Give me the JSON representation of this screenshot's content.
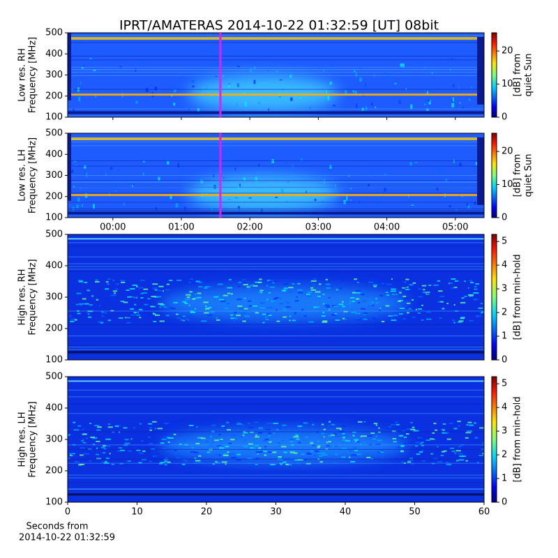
{
  "chart_data": [
    {
      "type": "heatmap",
      "title": "IPRT/AMATERAS 2014-10-22 01:32:59 [UT]   08bit",
      "ylabel": [
        "Low res. RH",
        "Frequency [MHz]"
      ],
      "ylim": [
        100,
        500
      ],
      "yticks": [
        100,
        200,
        300,
        400,
        500
      ],
      "xlim": [
        -0.66,
        5.42
      ],
      "cursor": {
        "x": 1.57,
        "color": "#e020f0"
      },
      "colorbar": {
        "label": [
          "[dB] from",
          "quiet Sun"
        ],
        "lim": [
          0,
          25.5
        ],
        "ticks": [
          0,
          10,
          20
        ]
      }
    },
    {
      "type": "heatmap",
      "ylabel": [
        "Low res. LH",
        "Frequency [MHz]"
      ],
      "ylim": [
        100,
        500
      ],
      "yticks": [
        100,
        200,
        300,
        400,
        500
      ],
      "xlim": [
        -0.66,
        5.42
      ],
      "xticks": [
        {
          "value": 0,
          "label": "00:00"
        },
        {
          "value": 1,
          "label": "01:00"
        },
        {
          "value": 2,
          "label": "02:00"
        },
        {
          "value": 3,
          "label": "03:00"
        },
        {
          "value": 4,
          "label": "04:00"
        },
        {
          "value": 5,
          "label": "05:00"
        }
      ],
      "cursor": {
        "x": 1.57,
        "color": "#e020f0"
      },
      "colorbar": {
        "label": [
          "[dB] from",
          "quiet Sun"
        ],
        "lim": [
          0,
          25.5
        ],
        "ticks": [
          0,
          10,
          20
        ]
      }
    },
    {
      "type": "heatmap",
      "ylabel": [
        "High res. RH",
        "Frequency [MHz]"
      ],
      "ylim": [
        100,
        500
      ],
      "yticks": [
        100,
        200,
        300,
        400,
        500
      ],
      "xlim": [
        0,
        60
      ],
      "colorbar": {
        "label": [
          "[dB] from min-hold"
        ],
        "lim": [
          0,
          5.3
        ],
        "ticks": [
          0,
          1,
          2,
          3,
          4,
          5
        ]
      }
    },
    {
      "type": "heatmap",
      "ylabel": [
        "High res. LH",
        "Frequency [MHz]"
      ],
      "ylim": [
        100,
        500
      ],
      "yticks": [
        100,
        200,
        300,
        400,
        500
      ],
      "xlim": [
        0,
        60
      ],
      "xticks": [
        0,
        10,
        20,
        30,
        40,
        50,
        60
      ],
      "xlabel": [
        "Seconds from",
        "2014-10-22 01:32:59"
      ],
      "colorbar": {
        "label": [
          "[dB] from min-hold"
        ],
        "lim": [
          0,
          5.3
        ],
        "ticks": [
          0,
          1,
          2,
          3,
          4,
          5
        ]
      }
    }
  ]
}
